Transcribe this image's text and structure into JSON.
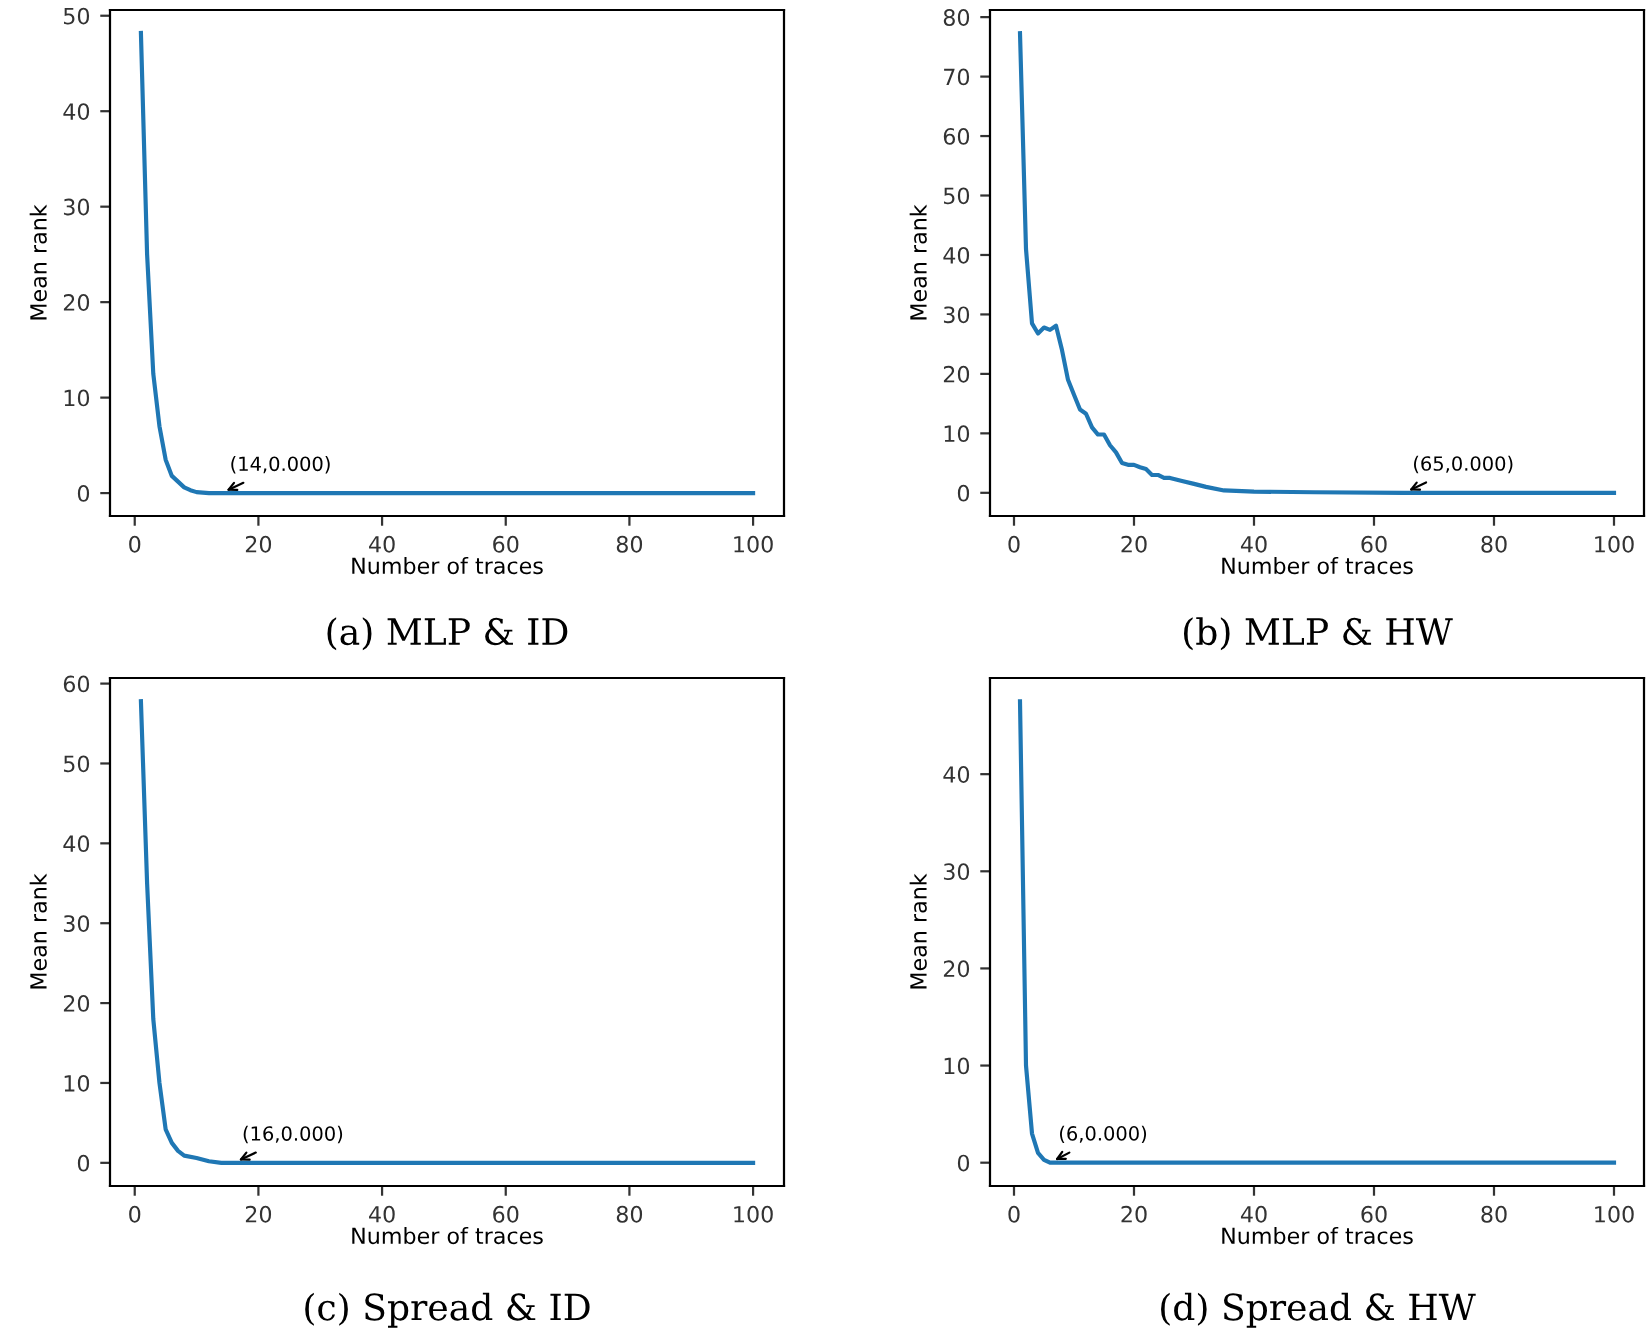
{
  "chart_data": [
    {
      "type": "line",
      "title": "(a) MLP & ID",
      "xlabel": "Number of traces",
      "ylabel": "Mean rank",
      "xlim": [
        -4,
        105
      ],
      "ylim": [
        -2.4,
        50.6
      ],
      "xticks": [
        0,
        20,
        40,
        60,
        80,
        100
      ],
      "yticks": [
        0,
        10,
        20,
        30,
        40,
        50
      ],
      "grid": false,
      "legend": false,
      "series": [
        {
          "color": "#1f77b4",
          "x": [
            1,
            2,
            3,
            4,
            5,
            6,
            7,
            8,
            9,
            10,
            12,
            14,
            100
          ],
          "values": [
            48.2,
            25,
            12.5,
            7,
            3.5,
            1.8,
            1.2,
            0.6,
            0.3,
            0.1,
            0,
            0,
            0
          ]
        }
      ],
      "annotations": [
        {
          "text": "(14,0.000)",
          "x": 14,
          "y": 0
        }
      ]
    },
    {
      "type": "line",
      "title": "(b) MLP & HW",
      "xlabel": "Number of traces",
      "ylabel": "Mean rank",
      "xlim": [
        -4,
        105
      ],
      "ylim": [
        -3.9,
        81.2
      ],
      "xticks": [
        0,
        20,
        40,
        60,
        80,
        100
      ],
      "yticks": [
        0,
        10,
        20,
        30,
        40,
        50,
        60,
        70,
        80
      ],
      "grid": false,
      "legend": false,
      "series": [
        {
          "color": "#1f77b4",
          "x": [
            1,
            2,
            3,
            4,
            5,
            6,
            7,
            8,
            9,
            10,
            11,
            12,
            13,
            14,
            15,
            16,
            17,
            18,
            19,
            20,
            21,
            22,
            23,
            24,
            25,
            26,
            28,
            30,
            32,
            35,
            40,
            50,
            65,
            100
          ],
          "values": [
            77.3,
            41,
            28.5,
            26.8,
            27.8,
            27.4,
            28.1,
            24,
            19,
            16.5,
            14,
            13.3,
            11,
            9.8,
            9.8,
            8,
            6.8,
            5,
            4.7,
            4.7,
            4.3,
            4,
            3,
            3,
            2.5,
            2.5,
            2,
            1.5,
            1,
            0.4,
            0.2,
            0.1,
            0,
            0
          ]
        }
      ],
      "annotations": [
        {
          "text": "(65,0.000)",
          "x": 65,
          "y": 0
        }
      ]
    },
    {
      "type": "line",
      "title": "(c) Spread & ID",
      "xlabel": "Number of traces",
      "ylabel": "Mean rank",
      "xlim": [
        -4,
        105
      ],
      "ylim": [
        -2.9,
        60.7
      ],
      "xticks": [
        0,
        20,
        40,
        60,
        80,
        100
      ],
      "yticks": [
        0,
        10,
        20,
        30,
        40,
        50,
        60
      ],
      "grid": false,
      "legend": false,
      "series": [
        {
          "color": "#1f77b4",
          "x": [
            1,
            2,
            3,
            4,
            5,
            6,
            7,
            8,
            10,
            12,
            14,
            16,
            100
          ],
          "values": [
            57.8,
            35,
            18,
            10,
            4.2,
            2.5,
            1.5,
            0.9,
            0.6,
            0.2,
            0,
            0,
            0
          ]
        }
      ],
      "annotations": [
        {
          "text": "(16,0.000)",
          "x": 16,
          "y": 0
        }
      ]
    },
    {
      "type": "line",
      "title": "(d) Spread & HW",
      "xlabel": "Number of traces",
      "ylabel": "Mean rank",
      "xlim": [
        -4,
        105
      ],
      "ylim": [
        -2.4,
        49.9
      ],
      "xticks": [
        0,
        20,
        40,
        60,
        80,
        100
      ],
      "yticks": [
        0,
        10,
        20,
        30,
        40
      ],
      "grid": false,
      "legend": false,
      "series": [
        {
          "color": "#1f77b4",
          "x": [
            1,
            2,
            3,
            4,
            5,
            6,
            100
          ],
          "values": [
            47.5,
            10,
            3,
            1,
            0.3,
            0,
            0
          ]
        }
      ],
      "annotations": [
        {
          "text": "(6,0.000)",
          "x": 6,
          "y": 0
        }
      ]
    }
  ]
}
